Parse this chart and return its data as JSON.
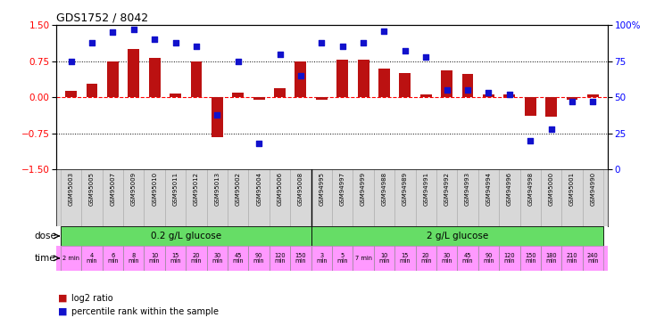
{
  "title": "GDS1752 / 8042",
  "samples": [
    "GSM95003",
    "GSM95005",
    "GSM95007",
    "GSM95009",
    "GSM95010",
    "GSM95011",
    "GSM95012",
    "GSM95013",
    "GSM95002",
    "GSM95004",
    "GSM95006",
    "GSM95008",
    "GSM94995",
    "GSM94997",
    "GSM94999",
    "GSM94988",
    "GSM94989",
    "GSM94991",
    "GSM94992",
    "GSM94993",
    "GSM94994",
    "GSM94996",
    "GSM94998",
    "GSM95000",
    "GSM95001",
    "GSM94990"
  ],
  "log2_ratio": [
    0.13,
    0.28,
    0.75,
    1.0,
    0.82,
    0.08,
    0.75,
    -0.82,
    0.1,
    -0.05,
    0.18,
    0.75,
    -0.05,
    0.78,
    0.78,
    0.6,
    0.5,
    0.05,
    0.55,
    0.48,
    0.05,
    0.05,
    -0.38,
    -0.4,
    -0.05,
    0.05
  ],
  "percentile": [
    75,
    88,
    95,
    97,
    90,
    88,
    85,
    38,
    75,
    18,
    80,
    65,
    88,
    85,
    88,
    96,
    82,
    78,
    55,
    55,
    53,
    52,
    20,
    28,
    47,
    47
  ],
  "time_labels": [
    "2 min",
    "4\nmin",
    "6\nmin",
    "8\nmin",
    "10\nmin",
    "15\nmin",
    "20\nmin",
    "30\nmin",
    "45\nmin",
    "90\nmin",
    "120\nmin",
    "150\nmin",
    "3\nmin",
    "5\nmin",
    "7 min",
    "10\nmin",
    "15\nmin",
    "20\nmin",
    "30\nmin",
    "45\nmin",
    "90\nmin",
    "120\nmin",
    "150\nmin",
    "180\nmin",
    "210\nmin",
    "240\nmin"
  ],
  "dose_groups": [
    {
      "label": "0.2 g/L glucose",
      "start": 0,
      "end": 12,
      "color": "#66dd66"
    },
    {
      "label": "2 g/L glucose",
      "start": 12,
      "end": 26,
      "color": "#66dd66"
    }
  ],
  "time_bg": "#ff99ff",
  "gsm_bg": "#d8d8d8",
  "bar_color": "#bb1111",
  "dot_color": "#1111cc",
  "ylim_left": [
    -1.5,
    1.5
  ],
  "ylim_right": [
    0,
    100
  ],
  "yticks_left": [
    -1.5,
    -0.75,
    0,
    0.75,
    1.5
  ],
  "yticks_right": [
    0,
    25,
    50,
    75,
    100
  ]
}
